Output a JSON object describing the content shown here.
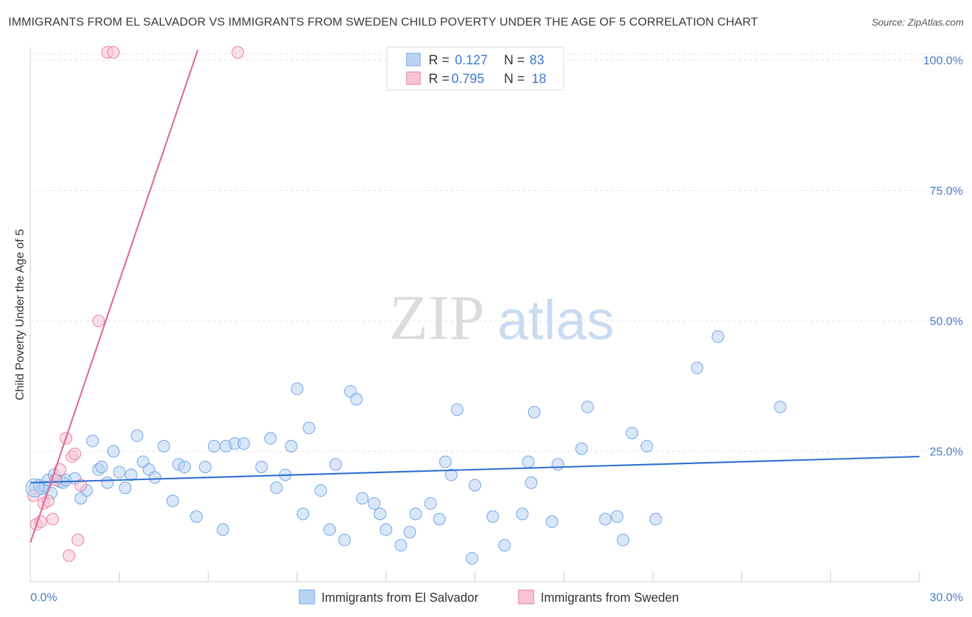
{
  "title": "IMMIGRANTS FROM EL SALVADOR VS IMMIGRANTS FROM SWEDEN CHILD POVERTY UNDER THE AGE OF 5 CORRELATION CHART",
  "source": "Source: ZipAtlas.com",
  "watermark": {
    "zip": "ZIP",
    "atlas": "atlas"
  },
  "legend": {
    "r_label": "R =",
    "n_label": "N =",
    "rows": [
      {
        "r": "0.127",
        "n": "83",
        "color": "#a8c8f0"
      },
      {
        "r": "0.795",
        "n": "18",
        "color": "#f7bcd0"
      }
    ]
  },
  "chart_data": {
    "type": "scatter",
    "title": "IMMIGRANTS FROM EL SALVADOR VS IMMIGRANTS FROM SWEDEN CHILD POVERTY UNDER THE AGE OF 5 CORRELATION CHART",
    "xlabel": "",
    "ylabel": "Child Poverty Under the Age of 5",
    "xlim": [
      0,
      30
    ],
    "ylim": [
      0,
      102
    ],
    "x_tick_labels": {
      "left": "0.0%",
      "right": "30.0%"
    },
    "y_ticks": [
      {
        "value": 25,
        "label": "25.0%"
      },
      {
        "value": 50,
        "label": "50.0%"
      },
      {
        "value": 75,
        "label": "75.0%"
      },
      {
        "value": 100,
        "label": "100.0%"
      }
    ],
    "grid": true,
    "legend_placement": "top-center",
    "series": [
      {
        "name": "Immigrants from El Salvador",
        "color": "#6fa3e8",
        "fill": "#b9d3f3",
        "r": 0.127,
        "n": 83,
        "trend": {
          "x0": 0,
          "y0": 19.0,
          "x1": 30,
          "y1": 24.0
        },
        "points": [
          [
            0.15,
            18
          ],
          [
            0.3,
            18.5
          ],
          [
            0.4,
            17.8
          ],
          [
            0.5,
            18.2
          ],
          [
            0.6,
            19.5
          ],
          [
            0.7,
            17
          ],
          [
            0.8,
            20.5
          ],
          [
            1.0,
            19.2
          ],
          [
            1.1,
            19
          ],
          [
            1.2,
            19.5
          ],
          [
            1.5,
            19.8
          ],
          [
            1.7,
            16
          ],
          [
            1.9,
            17.5
          ],
          [
            2.1,
            27
          ],
          [
            2.3,
            21.5
          ],
          [
            2.4,
            22
          ],
          [
            2.6,
            19
          ],
          [
            2.8,
            25
          ],
          [
            3.0,
            21
          ],
          [
            3.2,
            18
          ],
          [
            3.4,
            20.5
          ],
          [
            3.6,
            28
          ],
          [
            3.8,
            23
          ],
          [
            4.0,
            21.5
          ],
          [
            4.2,
            20
          ],
          [
            4.5,
            26
          ],
          [
            4.8,
            15.5
          ],
          [
            5.0,
            22.5
          ],
          [
            5.2,
            22
          ],
          [
            5.6,
            12.5
          ],
          [
            5.9,
            22
          ],
          [
            6.2,
            26
          ],
          [
            6.5,
            10
          ],
          [
            6.6,
            26
          ],
          [
            6.9,
            26.5
          ],
          [
            7.2,
            26.5
          ],
          [
            7.8,
            22
          ],
          [
            8.1,
            27.5
          ],
          [
            8.3,
            18
          ],
          [
            8.6,
            20.5
          ],
          [
            8.8,
            26
          ],
          [
            9.0,
            37
          ],
          [
            9.2,
            13
          ],
          [
            9.4,
            29.5
          ],
          [
            9.8,
            17.5
          ],
          [
            10.1,
            10
          ],
          [
            10.3,
            22.5
          ],
          [
            10.6,
            8
          ],
          [
            10.8,
            36.5
          ],
          [
            11.0,
            35
          ],
          [
            11.2,
            16
          ],
          [
            11.6,
            15
          ],
          [
            11.8,
            13
          ],
          [
            12.0,
            10
          ],
          [
            12.5,
            7
          ],
          [
            12.8,
            9.5
          ],
          [
            13.0,
            13
          ],
          [
            13.5,
            15
          ],
          [
            13.8,
            12
          ],
          [
            14.0,
            23
          ],
          [
            14.2,
            20.5
          ],
          [
            14.4,
            33
          ],
          [
            14.9,
            4.5
          ],
          [
            15.0,
            18.5
          ],
          [
            15.6,
            12.5
          ],
          [
            16.0,
            7
          ],
          [
            16.6,
            13
          ],
          [
            16.8,
            23
          ],
          [
            16.9,
            19
          ],
          [
            17.0,
            32.5
          ],
          [
            17.6,
            11.5
          ],
          [
            17.8,
            22.5
          ],
          [
            18.6,
            25.5
          ],
          [
            18.8,
            33.5
          ],
          [
            19.4,
            12
          ],
          [
            19.8,
            12.5
          ],
          [
            20.0,
            8
          ],
          [
            20.3,
            28.5
          ],
          [
            20.8,
            26
          ],
          [
            21.1,
            12
          ],
          [
            22.5,
            41
          ],
          [
            23.2,
            47
          ],
          [
            25.3,
            33.5
          ]
        ]
      },
      {
        "name": "Immigrants from Sweden",
        "color": "#e87aa0",
        "fill": "#f7c4d4",
        "r": 0.795,
        "n": 18,
        "trend": {
          "x0": 0,
          "y0": 7.5,
          "x1": 5.65,
          "y1": 102
        },
        "points": [
          [
            0.1,
            16.5
          ],
          [
            0.2,
            11
          ],
          [
            0.35,
            11.5
          ],
          [
            0.45,
            15
          ],
          [
            0.6,
            15.5
          ],
          [
            0.75,
            12
          ],
          [
            0.85,
            19.5
          ],
          [
            1.0,
            21.5
          ],
          [
            1.2,
            27.5
          ],
          [
            1.3,
            5
          ],
          [
            1.4,
            24
          ],
          [
            1.5,
            24.5
          ],
          [
            1.6,
            8
          ],
          [
            1.7,
            18.5
          ],
          [
            2.3,
            50
          ],
          [
            2.6,
            101.5
          ],
          [
            2.8,
            101.5
          ],
          [
            7.0,
            101.5
          ]
        ]
      }
    ]
  }
}
